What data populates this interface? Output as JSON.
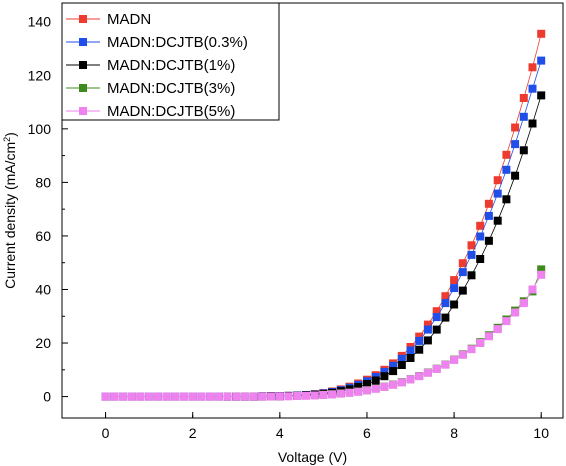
{
  "chart_data": {
    "type": "scatter",
    "xlabel": "Voltage (V)",
    "ylabel_main": "Current density (mA/cm",
    "ylabel_sup": "2",
    "ylabel_close": ")",
    "xlim": [
      -1,
      10.5
    ],
    "ylim": [
      -8,
      147
    ],
    "xticks": [
      0,
      2,
      4,
      6,
      8,
      10
    ],
    "yticks": [
      0,
      20,
      40,
      60,
      80,
      100,
      120,
      140
    ],
    "grid": false,
    "legend_position": "top-left",
    "series": [
      {
        "name": "MADN",
        "color": "#ee3b2f",
        "points": [
          [
            0,
            0
          ],
          [
            0.2,
            0
          ],
          [
            0.4,
            0
          ],
          [
            0.6,
            0
          ],
          [
            0.8,
            0
          ],
          [
            1,
            0
          ],
          [
            1.2,
            0
          ],
          [
            1.4,
            0
          ],
          [
            1.6,
            0
          ],
          [
            1.8,
            0
          ],
          [
            2,
            0
          ],
          [
            2.2,
            0
          ],
          [
            2.4,
            0
          ],
          [
            2.6,
            0
          ],
          [
            2.8,
            0
          ],
          [
            3,
            0
          ],
          [
            3.2,
            0
          ],
          [
            3.4,
            0
          ],
          [
            3.6,
            0.1
          ],
          [
            3.8,
            0.1
          ],
          [
            4,
            0.2
          ],
          [
            4.2,
            0.3
          ],
          [
            4.4,
            0.4
          ],
          [
            4.6,
            0.6
          ],
          [
            4.8,
            0.9
          ],
          [
            5,
            1.3
          ],
          [
            5.2,
            1.9
          ],
          [
            5.4,
            2.7
          ],
          [
            5.6,
            3.7
          ],
          [
            5.8,
            4.9
          ],
          [
            6,
            6.3
          ],
          [
            6.2,
            8
          ],
          [
            6.4,
            10
          ],
          [
            6.6,
            12.4
          ],
          [
            6.8,
            15.2
          ],
          [
            7,
            18.5
          ],
          [
            7.2,
            22.4
          ],
          [
            7.4,
            26.9
          ],
          [
            7.6,
            31.9
          ],
          [
            7.8,
            37.5
          ],
          [
            8,
            43.5
          ],
          [
            8.2,
            49.8
          ],
          [
            8.4,
            56.5
          ],
          [
            8.6,
            63.8
          ],
          [
            8.8,
            72
          ],
          [
            9,
            80.8
          ],
          [
            9.2,
            90.3
          ],
          [
            9.4,
            100.5
          ],
          [
            9.6,
            111.5
          ],
          [
            9.8,
            123
          ],
          [
            10,
            135.5
          ]
        ]
      },
      {
        "name": "MADN:DCJTB(0.3%)",
        "color": "#1f4fe8",
        "points": [
          [
            0,
            0
          ],
          [
            0.2,
            0
          ],
          [
            0.4,
            0
          ],
          [
            0.6,
            0
          ],
          [
            0.8,
            0
          ],
          [
            1,
            0
          ],
          [
            1.2,
            0
          ],
          [
            1.4,
            0
          ],
          [
            1.6,
            0
          ],
          [
            1.8,
            0
          ],
          [
            2,
            0
          ],
          [
            2.2,
            0
          ],
          [
            2.4,
            0
          ],
          [
            2.6,
            0
          ],
          [
            2.8,
            0
          ],
          [
            3,
            0
          ],
          [
            3.2,
            0
          ],
          [
            3.4,
            0
          ],
          [
            3.6,
            0.1
          ],
          [
            3.8,
            0.1
          ],
          [
            4,
            0.2
          ],
          [
            4.2,
            0.3
          ],
          [
            4.4,
            0.4
          ],
          [
            4.6,
            0.6
          ],
          [
            4.8,
            0.8
          ],
          [
            5,
            1.2
          ],
          [
            5.2,
            1.7
          ],
          [
            5.4,
            2.4
          ],
          [
            5.6,
            3.3
          ],
          [
            5.8,
            4.4
          ],
          [
            6,
            5.7
          ],
          [
            6.2,
            7.3
          ],
          [
            6.4,
            9.2
          ],
          [
            6.6,
            11.5
          ],
          [
            6.8,
            14.1
          ],
          [
            7,
            17.2
          ],
          [
            7.2,
            20.8
          ],
          [
            7.4,
            25
          ],
          [
            7.6,
            29.7
          ],
          [
            7.8,
            34.9
          ],
          [
            8,
            40.5
          ],
          [
            8.2,
            46.5
          ],
          [
            8.4,
            52.9
          ],
          [
            8.6,
            59.8
          ],
          [
            8.8,
            67.5
          ],
          [
            9,
            75.8
          ],
          [
            9.2,
            84.7
          ],
          [
            9.4,
            94.3
          ],
          [
            9.6,
            104.5
          ],
          [
            9.8,
            115
          ],
          [
            10,
            125.5
          ]
        ]
      },
      {
        "name": "MADN:DCJTB(1%)",
        "color": "#000000",
        "points": [
          [
            2.8,
            0
          ],
          [
            3,
            0
          ],
          [
            3.2,
            0
          ],
          [
            3.4,
            0
          ],
          [
            3.6,
            0
          ],
          [
            3.8,
            0.1
          ],
          [
            4,
            0.1
          ],
          [
            4.2,
            0.2
          ],
          [
            4.4,
            0.3
          ],
          [
            4.6,
            0.5
          ],
          [
            4.8,
            0.7
          ],
          [
            5,
            1
          ],
          [
            5.2,
            1.4
          ],
          [
            5.4,
            2
          ],
          [
            5.6,
            2.7
          ],
          [
            5.8,
            3.6
          ],
          [
            6,
            4.7
          ],
          [
            6.2,
            6
          ],
          [
            6.4,
            7.6
          ],
          [
            6.6,
            9.5
          ],
          [
            6.8,
            11.8
          ],
          [
            7,
            14.4
          ],
          [
            7.2,
            17.5
          ],
          [
            7.4,
            21
          ],
          [
            7.6,
            25
          ],
          [
            7.8,
            29.5
          ],
          [
            8,
            34.4
          ],
          [
            8.2,
            39.6
          ],
          [
            8.4,
            45.3
          ],
          [
            8.6,
            51.4
          ],
          [
            8.8,
            58.2
          ],
          [
            9,
            65.7
          ],
          [
            9.2,
            73.7
          ],
          [
            9.4,
            82.5
          ],
          [
            9.6,
            92
          ],
          [
            9.8,
            102
          ],
          [
            10,
            112.5
          ]
        ]
      },
      {
        "name": "MADN:DCJTB(3%)",
        "color": "#3f8a1c",
        "points": [
          [
            5,
            0.7
          ],
          [
            5.2,
            0.9
          ],
          [
            5.4,
            1.2
          ],
          [
            5.6,
            1.5
          ],
          [
            5.8,
            1.9
          ],
          [
            6,
            2.4
          ],
          [
            6.2,
            3
          ],
          [
            6.4,
            3.7
          ],
          [
            6.6,
            4.5
          ],
          [
            6.8,
            5.4
          ],
          [
            7,
            6.5
          ],
          [
            7.2,
            7.7
          ],
          [
            7.4,
            9
          ],
          [
            7.6,
            10.4
          ],
          [
            7.8,
            12
          ],
          [
            8,
            13.8
          ],
          [
            8.2,
            15.8
          ],
          [
            8.4,
            17.9
          ],
          [
            8.6,
            20.3
          ],
          [
            8.8,
            22.9
          ],
          [
            9,
            25.7
          ],
          [
            9.2,
            28.8
          ],
          [
            9.4,
            32.1
          ],
          [
            9.6,
            35.6
          ],
          [
            9.8,
            39.3
          ],
          [
            10,
            47.5
          ]
        ]
      },
      {
        "name": "MADN:DCJTB(5%)",
        "color": "#ee82ee",
        "points": [
          [
            0,
            0
          ],
          [
            0.2,
            0
          ],
          [
            0.4,
            0
          ],
          [
            0.6,
            0
          ],
          [
            0.8,
            0
          ],
          [
            1,
            0
          ],
          [
            1.2,
            0
          ],
          [
            1.4,
            0
          ],
          [
            1.6,
            0
          ],
          [
            1.8,
            0
          ],
          [
            2,
            0
          ],
          [
            2.2,
            0
          ],
          [
            2.4,
            0
          ],
          [
            2.6,
            0
          ],
          [
            2.8,
            0
          ],
          [
            3,
            0
          ],
          [
            3.2,
            0
          ],
          [
            3.4,
            0
          ],
          [
            3.6,
            0
          ],
          [
            3.8,
            0
          ],
          [
            4,
            0.1
          ],
          [
            4.2,
            0.1
          ],
          [
            4.4,
            0.2
          ],
          [
            4.6,
            0.3
          ],
          [
            4.8,
            0.4
          ],
          [
            5,
            0.6
          ],
          [
            5.2,
            0.8
          ],
          [
            5.4,
            1.1
          ],
          [
            5.6,
            1.4
          ],
          [
            5.8,
            1.8
          ],
          [
            6,
            2.3
          ],
          [
            6.2,
            2.9
          ],
          [
            6.4,
            3.6
          ],
          [
            6.6,
            4.4
          ],
          [
            6.8,
            5.3
          ],
          [
            7,
            6.4
          ],
          [
            7.2,
            7.6
          ],
          [
            7.4,
            8.9
          ],
          [
            7.6,
            10.3
          ],
          [
            7.8,
            11.9
          ],
          [
            8,
            13.7
          ],
          [
            8.2,
            15.6
          ],
          [
            8.4,
            17.7
          ],
          [
            8.6,
            20
          ],
          [
            8.8,
            22.5
          ],
          [
            9,
            25.2
          ],
          [
            9.2,
            28.2
          ],
          [
            9.4,
            31.4
          ],
          [
            9.6,
            34.9
          ],
          [
            9.8,
            40
          ],
          [
            10,
            45.5
          ]
        ]
      }
    ]
  }
}
